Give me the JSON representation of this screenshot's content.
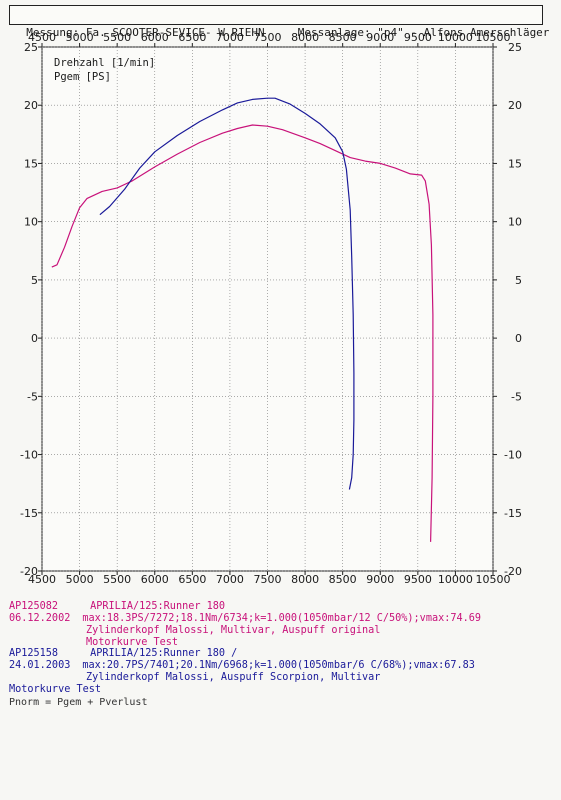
{
  "header": {
    "text": "Messung: Fa. SCOOTER-SEVICE- W.RIEHN     Messanlage: \"p4\" - Alfons Amerschläger"
  },
  "chart_data": {
    "type": "line",
    "x_ticks": [
      4500,
      5000,
      5500,
      6000,
      6500,
      7000,
      7500,
      8000,
      8500,
      9000,
      9500,
      10000,
      10500
    ],
    "y_ticks": [
      25,
      20,
      15,
      10,
      5,
      0,
      -5,
      -10,
      -15,
      -20
    ],
    "xlim": [
      4500,
      10500
    ],
    "ylim": [
      -20,
      25
    ],
    "grid": true,
    "annotations": [
      "Drehzahl [1/min]",
      "Pgem [PS]"
    ],
    "series": [
      {
        "color": "#c8127a",
        "x": [
          4630,
          4700,
          4800,
          4900,
          5000,
          5100,
          5300,
          5500,
          5700,
          6000,
          6300,
          6600,
          6900,
          7100,
          7300,
          7500,
          7700,
          8000,
          8200,
          8400,
          8600,
          8800,
          9000,
          9200,
          9400,
          9550,
          9600,
          9650,
          9680,
          9700,
          9700,
          9690,
          9670
        ],
        "y": [
          6.1,
          6.3,
          7.8,
          9.6,
          11.2,
          12.0,
          12.6,
          12.9,
          13.5,
          14.7,
          15.8,
          16.8,
          17.6,
          18.0,
          18.3,
          18.2,
          17.9,
          17.2,
          16.7,
          16.1,
          15.5,
          15.2,
          15.0,
          14.6,
          14.1,
          14.0,
          13.5,
          11.5,
          8.0,
          2.0,
          -5.0,
          -12.0,
          -17.5
        ]
      },
      {
        "color": "#1a1a99",
        "x": [
          5270,
          5400,
          5600,
          5800,
          6000,
          6300,
          6600,
          6900,
          7100,
          7300,
          7500,
          7600,
          7800,
          8000,
          8200,
          8400,
          8500,
          8550,
          8600,
          8620,
          8640,
          8650,
          8650,
          8640,
          8620,
          8590
        ],
        "y": [
          10.6,
          11.3,
          12.8,
          14.6,
          16.0,
          17.4,
          18.6,
          19.6,
          20.2,
          20.5,
          20.6,
          20.6,
          20.1,
          19.3,
          18.4,
          17.2,
          16.0,
          14.5,
          11.0,
          7.0,
          2.0,
          -3.0,
          -7.0,
          -10.0,
          -12.0,
          -13.0
        ]
      }
    ]
  },
  "legend": {
    "entry1": {
      "id": "AP125082",
      "date": "06.12.2002",
      "model": "APRILIA/125:Runner 180",
      "stats": "max:18.3PS/7272;18.1Nm/6734;k=1.000(1050mbar/12 C/50%);vmax:74.69",
      "desc": "Zylinderkopf Malossi, Multivar, Auspuff original",
      "desc2": "Motorkurve Test"
    },
    "entry2": {
      "id": "AP125158",
      "date": "24.01.2003",
      "model": "APRILIA/125:Runner 180 /",
      "stats": "max:20.7PS/7401;20.1Nm/6968;k=1.000(1050mbar/6 C/68%);vmax:67.83",
      "desc": "Zylinderkopf Malossi, Auspuff Scorpion, Multivar",
      "desc2": "Motorkurve Test"
    }
  },
  "footer": {
    "note": "Pnorm = Pgem + Pverlust"
  }
}
